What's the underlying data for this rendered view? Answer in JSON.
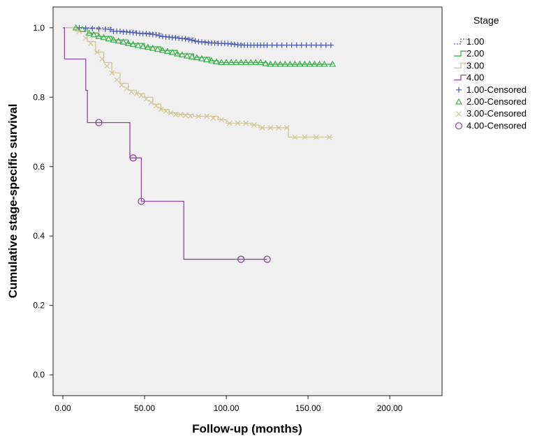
{
  "chart_data": {
    "type": "line",
    "xlabel": "Follow-up (months)",
    "ylabel": "Cumulative stage-specific survival",
    "xlim": [
      -6,
      232
    ],
    "ylim": [
      -0.06,
      1.06
    ],
    "xticks": [
      0,
      50,
      100,
      150,
      200
    ],
    "xtick_labels": [
      "0.00",
      "50.00",
      "100.00",
      "150.00",
      "200.00"
    ],
    "yticks": [
      0.0,
      0.2,
      0.4,
      0.6,
      0.8,
      1.0
    ],
    "ytick_labels": [
      "0.0",
      "0.2",
      "0.4",
      "0.6",
      "0.8",
      "1.0"
    ],
    "grid": false,
    "legend_position": "right",
    "legend_title": "Stage",
    "series": [
      {
        "name": "1.00",
        "color": "#4a5ab0",
        "line_style": "dotted",
        "censor_label": "1.00-Censored",
        "censor_marker": "plus",
        "steps": [
          [
            0,
            1.0
          ],
          [
            30,
            0.99
          ],
          [
            45,
            0.985
          ],
          [
            60,
            0.975
          ],
          [
            70,
            0.97
          ],
          [
            80,
            0.96
          ],
          [
            95,
            0.955
          ],
          [
            110,
            0.95
          ],
          [
            165,
            0.95
          ]
        ],
        "censored": [
          [
            10,
            1.0
          ],
          [
            14,
            0.999
          ],
          [
            18,
            0.998
          ],
          [
            22,
            0.997
          ],
          [
            26,
            0.996
          ],
          [
            29,
            0.995
          ],
          [
            31,
            0.99
          ],
          [
            33,
            0.99
          ],
          [
            35,
            0.99
          ],
          [
            37,
            0.988
          ],
          [
            39,
            0.988
          ],
          [
            41,
            0.987
          ],
          [
            43,
            0.986
          ],
          [
            45,
            0.985
          ],
          [
            47,
            0.984
          ],
          [
            49,
            0.983
          ],
          [
            51,
            0.983
          ],
          [
            53,
            0.982
          ],
          [
            55,
            0.981
          ],
          [
            57,
            0.98
          ],
          [
            59,
            0.977
          ],
          [
            61,
            0.975
          ],
          [
            63,
            0.974
          ],
          [
            65,
            0.973
          ],
          [
            67,
            0.972
          ],
          [
            69,
            0.971
          ],
          [
            71,
            0.97
          ],
          [
            73,
            0.969
          ],
          [
            75,
            0.968
          ],
          [
            77,
            0.966
          ],
          [
            79,
            0.964
          ],
          [
            81,
            0.962
          ],
          [
            83,
            0.96
          ],
          [
            85,
            0.959
          ],
          [
            87,
            0.958
          ],
          [
            89,
            0.957
          ],
          [
            91,
            0.956
          ],
          [
            93,
            0.956
          ],
          [
            95,
            0.955
          ],
          [
            97,
            0.955
          ],
          [
            99,
            0.955
          ],
          [
            101,
            0.954
          ],
          [
            103,
            0.953
          ],
          [
            105,
            0.952
          ],
          [
            107,
            0.951
          ],
          [
            109,
            0.95
          ],
          [
            111,
            0.95
          ],
          [
            113,
            0.95
          ],
          [
            115,
            0.95
          ],
          [
            117,
            0.95
          ],
          [
            119,
            0.95
          ],
          [
            121,
            0.95
          ],
          [
            123,
            0.95
          ],
          [
            125,
            0.95
          ],
          [
            128,
            0.95
          ],
          [
            131,
            0.95
          ],
          [
            134,
            0.95
          ],
          [
            137,
            0.95
          ],
          [
            140,
            0.95
          ],
          [
            143,
            0.95
          ],
          [
            146,
            0.95
          ],
          [
            149,
            0.95
          ],
          [
            152,
            0.95
          ],
          [
            155,
            0.95
          ],
          [
            158,
            0.95
          ],
          [
            161,
            0.95
          ],
          [
            164,
            0.95
          ]
        ]
      },
      {
        "name": "2.00",
        "color": "#3cb34a",
        "line_style": "solid",
        "censor_label": "2.00-Censored",
        "censor_marker": "triangle",
        "steps": [
          [
            0,
            1.0
          ],
          [
            15,
            0.985
          ],
          [
            22,
            0.975
          ],
          [
            30,
            0.965
          ],
          [
            40,
            0.955
          ],
          [
            50,
            0.945
          ],
          [
            60,
            0.935
          ],
          [
            70,
            0.925
          ],
          [
            80,
            0.915
          ],
          [
            90,
            0.905
          ],
          [
            95,
            0.9
          ],
          [
            125,
            0.895
          ],
          [
            165,
            0.895
          ]
        ],
        "censored": [
          [
            8,
            1.0
          ],
          [
            12,
            0.995
          ],
          [
            16,
            0.985
          ],
          [
            19,
            0.98
          ],
          [
            22,
            0.975
          ],
          [
            25,
            0.972
          ],
          [
            28,
            0.968
          ],
          [
            31,
            0.965
          ],
          [
            34,
            0.962
          ],
          [
            37,
            0.959
          ],
          [
            40,
            0.955
          ],
          [
            43,
            0.952
          ],
          [
            46,
            0.949
          ],
          [
            49,
            0.946
          ],
          [
            52,
            0.944
          ],
          [
            55,
            0.941
          ],
          [
            58,
            0.938
          ],
          [
            61,
            0.935
          ],
          [
            64,
            0.932
          ],
          [
            67,
            0.929
          ],
          [
            70,
            0.925
          ],
          [
            73,
            0.922
          ],
          [
            76,
            0.919
          ],
          [
            79,
            0.916
          ],
          [
            82,
            0.914
          ],
          [
            85,
            0.911
          ],
          [
            88,
            0.908
          ],
          [
            91,
            0.905
          ],
          [
            94,
            0.902
          ],
          [
            97,
            0.9
          ],
          [
            100,
            0.9
          ],
          [
            103,
            0.9
          ],
          [
            106,
            0.9
          ],
          [
            109,
            0.9
          ],
          [
            112,
            0.9
          ],
          [
            115,
            0.9
          ],
          [
            118,
            0.9
          ],
          [
            121,
            0.9
          ],
          [
            124,
            0.897
          ],
          [
            127,
            0.895
          ],
          [
            130,
            0.895
          ],
          [
            133,
            0.895
          ],
          [
            136,
            0.895
          ],
          [
            139,
            0.895
          ],
          [
            142,
            0.895
          ],
          [
            145,
            0.895
          ],
          [
            148,
            0.895
          ],
          [
            151,
            0.895
          ],
          [
            154,
            0.895
          ],
          [
            157,
            0.895
          ],
          [
            160,
            0.895
          ],
          [
            165,
            0.895
          ]
        ]
      },
      {
        "name": "3.00",
        "color": "#cfc899",
        "line_style": "solid",
        "censor_label": "3.00-Censored",
        "censor_marker": "cross",
        "steps": [
          [
            0,
            1.0
          ],
          [
            8,
            0.99
          ],
          [
            15,
            0.96
          ],
          [
            20,
            0.93
          ],
          [
            25,
            0.9
          ],
          [
            30,
            0.87
          ],
          [
            35,
            0.84
          ],
          [
            40,
            0.82
          ],
          [
            45,
            0.81
          ],
          [
            50,
            0.8
          ],
          [
            55,
            0.78
          ],
          [
            60,
            0.765
          ],
          [
            65,
            0.755
          ],
          [
            70,
            0.75
          ],
          [
            80,
            0.745
          ],
          [
            95,
            0.735
          ],
          [
            100,
            0.725
          ],
          [
            115,
            0.72
          ],
          [
            120,
            0.712
          ],
          [
            138,
            0.685
          ],
          [
            165,
            0.685
          ]
        ],
        "censored": [
          [
            10,
            0.99
          ],
          [
            14,
            0.97
          ],
          [
            17,
            0.955
          ],
          [
            21,
            0.93
          ],
          [
            24,
            0.91
          ],
          [
            27,
            0.89
          ],
          [
            30,
            0.87
          ],
          [
            33,
            0.85
          ],
          [
            36,
            0.835
          ],
          [
            39,
            0.825
          ],
          [
            42,
            0.815
          ],
          [
            45,
            0.81
          ],
          [
            48,
            0.805
          ],
          [
            51,
            0.795
          ],
          [
            54,
            0.785
          ],
          [
            57,
            0.775
          ],
          [
            60,
            0.765
          ],
          [
            63,
            0.76
          ],
          [
            66,
            0.755
          ],
          [
            69,
            0.75
          ],
          [
            72,
            0.75
          ],
          [
            75,
            0.748
          ],
          [
            78,
            0.746
          ],
          [
            83,
            0.745
          ],
          [
            88,
            0.745
          ],
          [
            92,
            0.74
          ],
          [
            97,
            0.735
          ],
          [
            102,
            0.725
          ],
          [
            107,
            0.725
          ],
          [
            112,
            0.725
          ],
          [
            117,
            0.72
          ],
          [
            122,
            0.712
          ],
          [
            127,
            0.712
          ],
          [
            132,
            0.712
          ],
          [
            137,
            0.712
          ],
          [
            142,
            0.685
          ],
          [
            148,
            0.685
          ],
          [
            155,
            0.685
          ],
          [
            163,
            0.685
          ]
        ]
      },
      {
        "name": "4.00",
        "color": "#8e4a9b",
        "line_style": "solid",
        "censor_label": "4.00-Censored",
        "censor_marker": "circle",
        "steps": [
          [
            0,
            1.0
          ],
          [
            1,
            0.91
          ],
          [
            14,
            0.82
          ],
          [
            15,
            0.727
          ],
          [
            41,
            0.625
          ],
          [
            48,
            0.5
          ],
          [
            74,
            0.333
          ],
          [
            125,
            0.333
          ]
        ],
        "censored": [
          [
            22,
            0.727
          ],
          [
            43,
            0.625
          ],
          [
            48,
            0.5
          ],
          [
            109,
            0.333
          ],
          [
            125,
            0.333
          ]
        ]
      }
    ]
  }
}
